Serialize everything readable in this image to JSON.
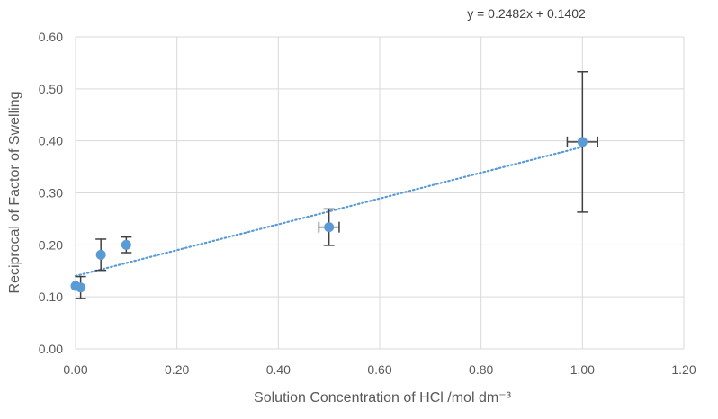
{
  "chart_data": {
    "type": "scatter",
    "title": "",
    "xlabel": "Solution Concentration of HCl /mol dm⁻³",
    "ylabel": "Reciprocal of Factor of Swelling",
    "xlim": [
      0,
      1.2
    ],
    "ylim": [
      0,
      0.6
    ],
    "x_ticks": [
      "0.00",
      "0.20",
      "0.40",
      "0.60",
      "0.80",
      "1.00",
      "1.20"
    ],
    "y_ticks": [
      "0.00",
      "0.10",
      "0.20",
      "0.30",
      "0.40",
      "0.50",
      "0.60"
    ],
    "x_tick_values": [
      0,
      0.2,
      0.4,
      0.6,
      0.8,
      1.0,
      1.2
    ],
    "y_tick_values": [
      0,
      0.1,
      0.2,
      0.3,
      0.4,
      0.5,
      0.6
    ],
    "grid": "vertical and horizontal",
    "point_color": "#5B9BD5",
    "trend_color": "#5B9BD5",
    "errorbar_color": "#404040",
    "points": [
      {
        "x": 0.0,
        "y": 0.121,
        "y_err": 0.0,
        "x_err": 0.0
      },
      {
        "x": 0.01,
        "y": 0.118,
        "y_err": 0.021,
        "x_err": 0.0
      },
      {
        "x": 0.05,
        "y": 0.181,
        "y_err": 0.03,
        "x_err": 0.0
      },
      {
        "x": 0.1,
        "y": 0.2,
        "y_err": 0.015,
        "x_err": 0.0
      },
      {
        "x": 0.5,
        "y": 0.234,
        "y_err": 0.035,
        "x_err": 0.02
      },
      {
        "x": 1.0,
        "y": 0.398,
        "y_err": 0.135,
        "x_err": 0.03
      }
    ],
    "trendline": {
      "slope": 0.2482,
      "intercept": 0.1402,
      "x_range": [
        0,
        1.0
      ],
      "style": "dotted"
    },
    "equation_label": "y = 0.2482x + 0.1402"
  }
}
